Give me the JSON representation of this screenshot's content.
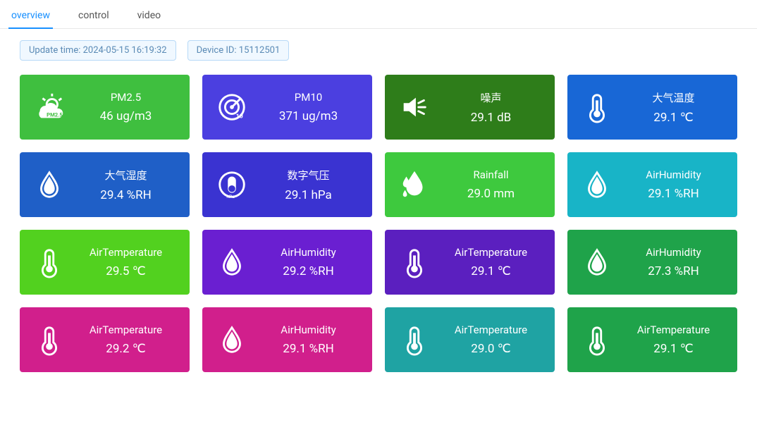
{
  "tabs": {
    "items": [
      {
        "label": "overview",
        "active": true
      },
      {
        "label": "control",
        "active": false
      },
      {
        "label": "video",
        "active": false
      }
    ]
  },
  "info": {
    "update_time_label": "Update time:",
    "update_time_value": "2024-05-15 16:19:32",
    "device_id_label": "Device ID:",
    "device_id_value": "15112501"
  },
  "colors": {
    "tab_active": "#1890ff",
    "pill_border": "#b7d9f7",
    "pill_bg": "#f0f8ff",
    "pill_text": "#5a8ab5"
  },
  "cards": [
    {
      "label": "PM2.5",
      "value": "46 ug/m3",
      "bg": "#3fbf3f",
      "icon": "pm25"
    },
    {
      "label": "PM10",
      "value": "371 ug/m3",
      "bg": "#4b3fe0",
      "icon": "pm10"
    },
    {
      "label": "噪声",
      "value": "29.1 dB",
      "bg": "#2e7d1a",
      "icon": "noise"
    },
    {
      "label": "大气温度",
      "value": "29.1 ℃",
      "bg": "#1867d6",
      "icon": "thermometer"
    },
    {
      "label": "大气湿度",
      "value": "29.4 %RH",
      "bg": "#1f5fc7",
      "icon": "drop"
    },
    {
      "label": "数字气压",
      "value": "29.1 hPa",
      "bg": "#3a33d1",
      "icon": "pressure"
    },
    {
      "label": "Rainfall",
      "value": "29.0 mm",
      "bg": "#3ec93e",
      "icon": "rain"
    },
    {
      "label": "AirHumidity",
      "value": "29.1 %RH",
      "bg": "#18b4c7",
      "icon": "drop"
    },
    {
      "label": "AirTemperature",
      "value": "29.5 ℃",
      "bg": "#52d11f",
      "icon": "thermometer"
    },
    {
      "label": "AirHumidity",
      "value": "29.2 %RH",
      "bg": "#6a1fd1",
      "icon": "drop"
    },
    {
      "label": "AirTemperature",
      "value": "29.1 ℃",
      "bg": "#5b1fbf",
      "icon": "thermometer"
    },
    {
      "label": "AirHumidity",
      "value": "27.3 %RH",
      "bg": "#1fa34a",
      "icon": "drop"
    },
    {
      "label": "AirTemperature",
      "value": "29.2 ℃",
      "bg": "#d11f8c",
      "icon": "thermometer"
    },
    {
      "label": "AirHumidity",
      "value": "29.1 %RH",
      "bg": "#d11f8c",
      "icon": "drop"
    },
    {
      "label": "AirTemperature",
      "value": "29.0 ℃",
      "bg": "#1fa3a3",
      "icon": "thermometer"
    },
    {
      "label": "AirTemperature",
      "value": "29.1 ℃",
      "bg": "#1fa34a",
      "icon": "thermometer"
    }
  ]
}
